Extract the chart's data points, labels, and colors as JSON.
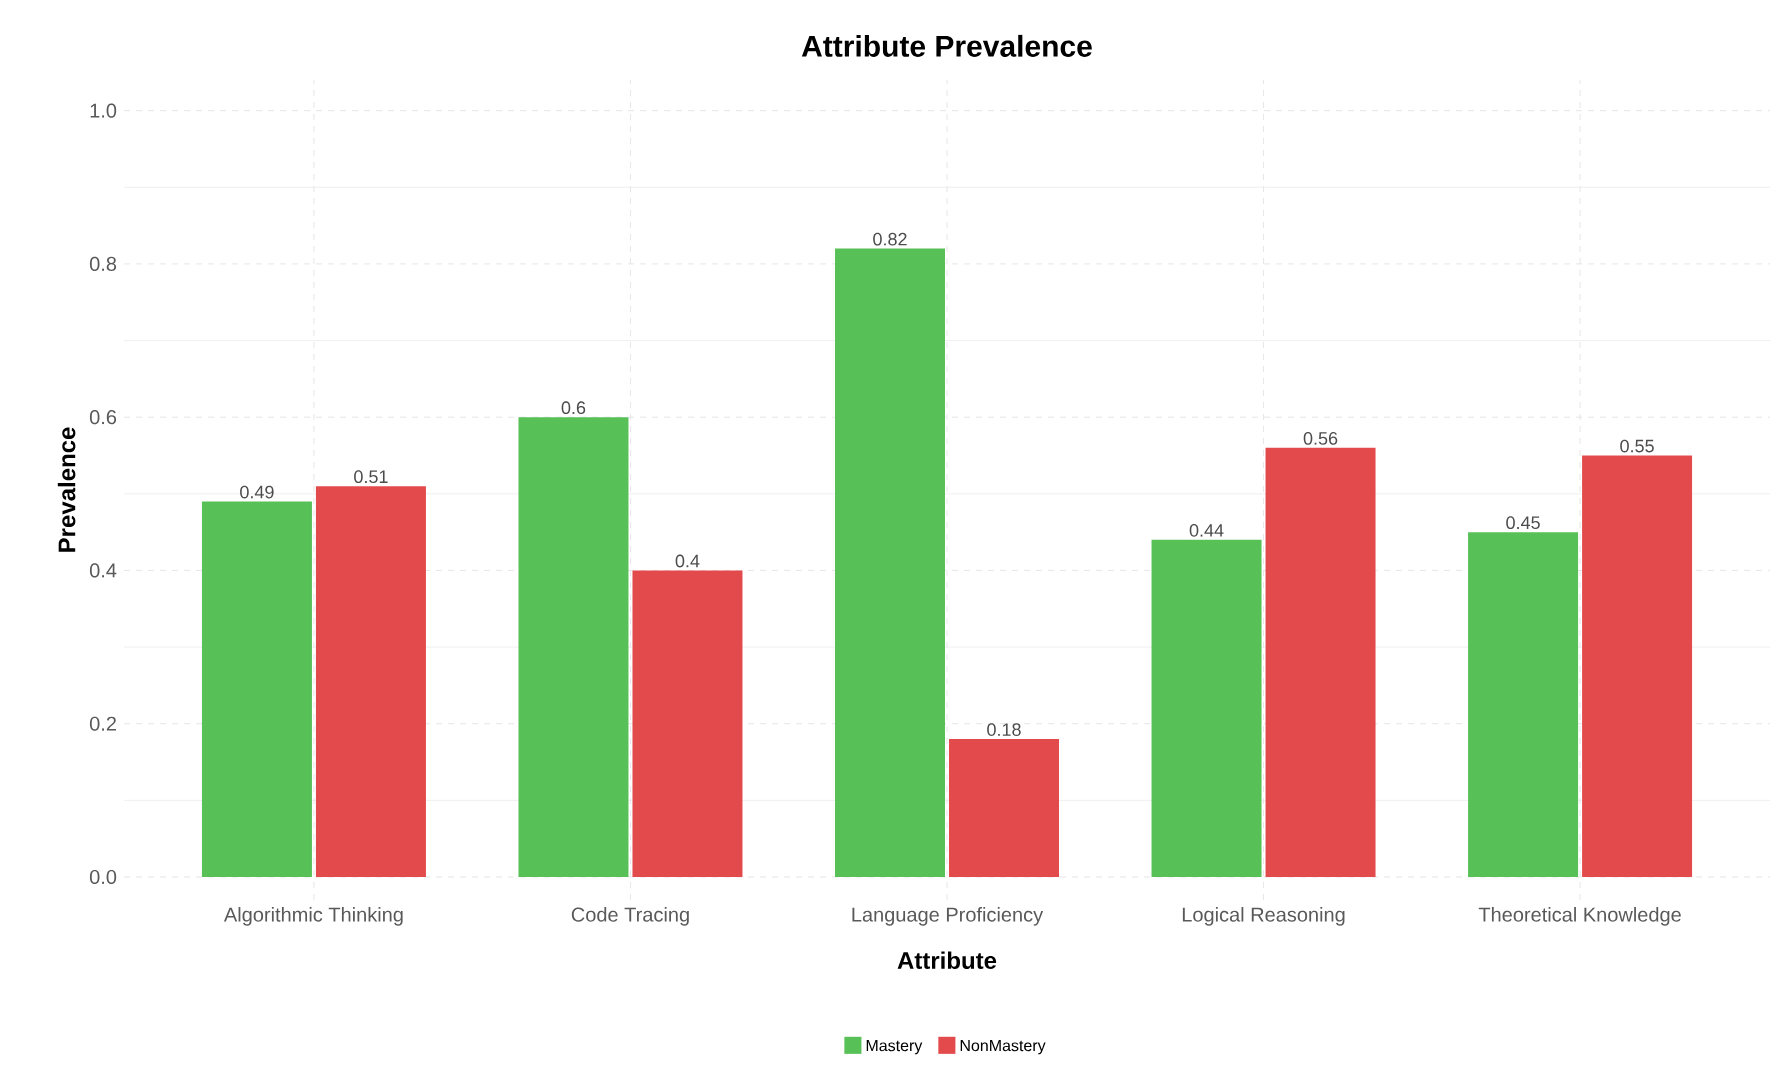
{
  "chart_data": {
    "type": "bar",
    "title": "Attribute Prevalence",
    "xlabel": "Attribute",
    "ylabel": "Prevalence",
    "categories": [
      "Algorithmic Thinking",
      "Code Tracing",
      "Language Proficiency",
      "Logical Reasoning",
      "Theoretical Knowledge"
    ],
    "series": [
      {
        "name": "Mastery",
        "color": "#57c057",
        "values": [
          0.49,
          0.6,
          0.82,
          0.44,
          0.45
        ]
      },
      {
        "name": "NonMastery",
        "color": "#e34a4c",
        "values": [
          0.51,
          0.4,
          0.18,
          0.56,
          0.55
        ]
      }
    ],
    "ylim": [
      -0.03,
      1.04
    ],
    "yticks": [
      {
        "value": 0,
        "label": "0.0"
      },
      {
        "value": 0.2,
        "label": "0.2"
      },
      {
        "value": 0.4,
        "label": "0.4"
      },
      {
        "value": 0.6,
        "label": "0.6"
      },
      {
        "value": 0.8,
        "label": "0.8"
      },
      {
        "value": 1,
        "label": "1.0"
      }
    ],
    "grid": true,
    "legend": "bottom",
    "data_labels": true
  }
}
